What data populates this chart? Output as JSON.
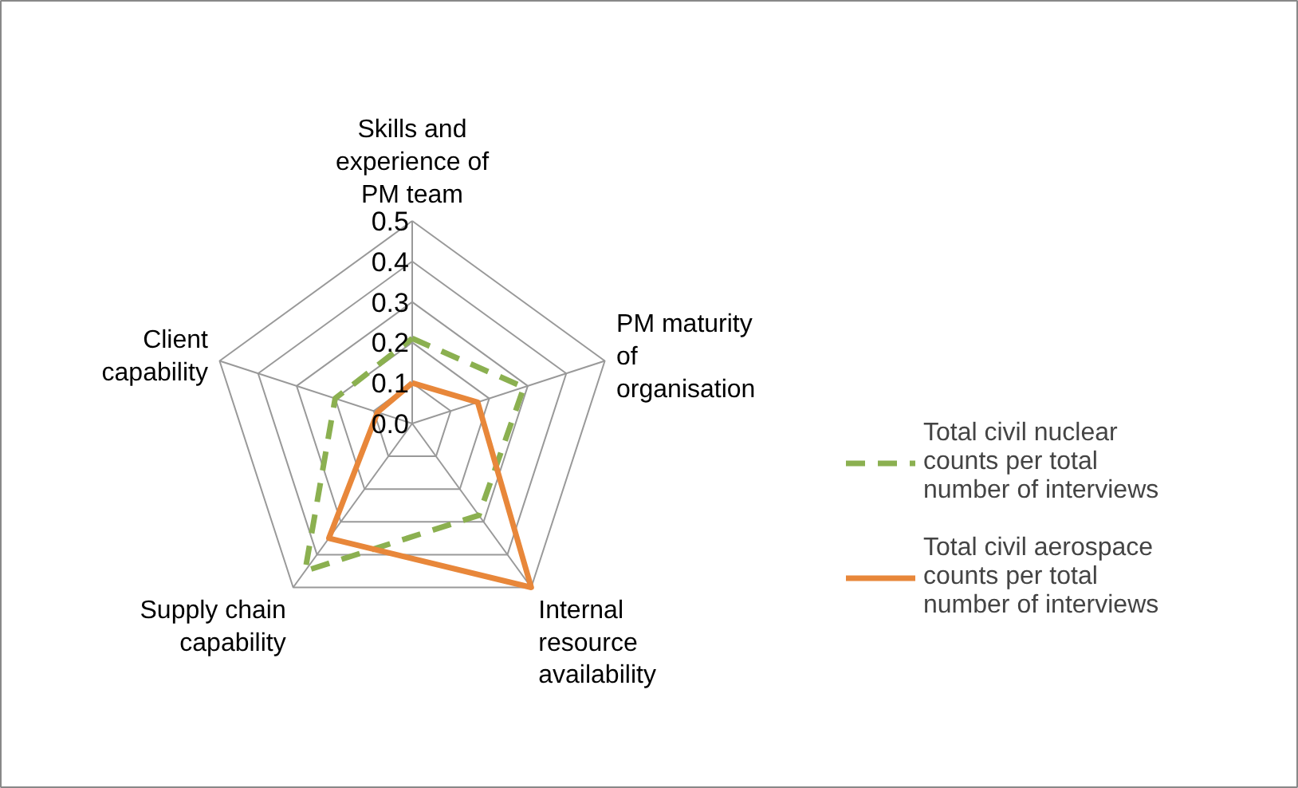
{
  "chart_data": {
    "type": "radar",
    "categories": [
      "Skills and experience of PM team",
      "PM maturity of organisation",
      "Internal resource availability",
      "Supply chain capability",
      "Client capability"
    ],
    "series": [
      {
        "name": "Total civil nuclear counts per total number of interviews",
        "color": "#8bb050",
        "values": [
          0.21,
          0.29,
          0.28,
          0.45,
          0.2
        ],
        "line_style": "dashed"
      },
      {
        "name": "Total civil aerospace counts per total number of interviews",
        "color": "#e8873a",
        "values": [
          0.1,
          0.17,
          0.5,
          0.35,
          0.09
        ],
        "line_style": "solid"
      }
    ],
    "ylim": [
      0,
      0.5
    ],
    "yticks": [
      {
        "value": 0,
        "label": "0.0"
      },
      0.1,
      0.2,
      0.3,
      0.4,
      0.5
    ],
    "grid": true,
    "legend": "right",
    "marker": "none"
  }
}
